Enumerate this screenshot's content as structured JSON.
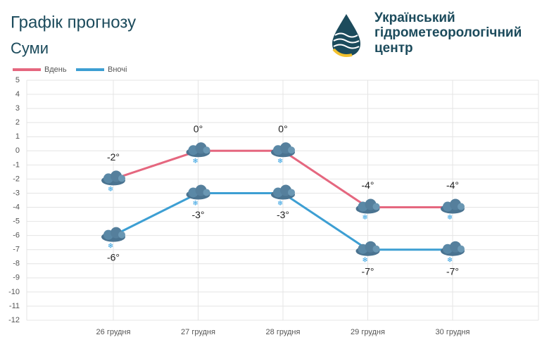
{
  "logo_text": [
    "Український",
    "гідрометеорологічний",
    "центр"
  ],
  "chart_data": {
    "type": "line",
    "title": "Графік прогнозу",
    "subtitle": "Суми",
    "categories": [
      "26 грудня",
      "27 грудня",
      "28 грудня",
      "29 грудня",
      "30 грудня"
    ],
    "series": [
      {
        "name": "Вдень",
        "color": "#e5677f",
        "values": [
          -2,
          0,
          0,
          -4,
          -4
        ],
        "value_labels": [
          "-2°",
          "0°",
          "0°",
          "-4°",
          "-4°"
        ]
      },
      {
        "name": "Вночі",
        "color": "#3d9fd3",
        "values": [
          -6,
          -3,
          -3,
          -7,
          -7
        ],
        "value_labels": [
          "-6°",
          "-3°",
          "-3°",
          "-7°",
          "-7°"
        ]
      }
    ],
    "ylim": [
      -12,
      5
    ],
    "yticks": [
      5,
      4,
      3,
      2,
      1,
      0,
      -1,
      -2,
      -3,
      -4,
      -5,
      -6,
      -7,
      -8,
      -9,
      -10,
      -11,
      -12
    ],
    "grid": true
  }
}
